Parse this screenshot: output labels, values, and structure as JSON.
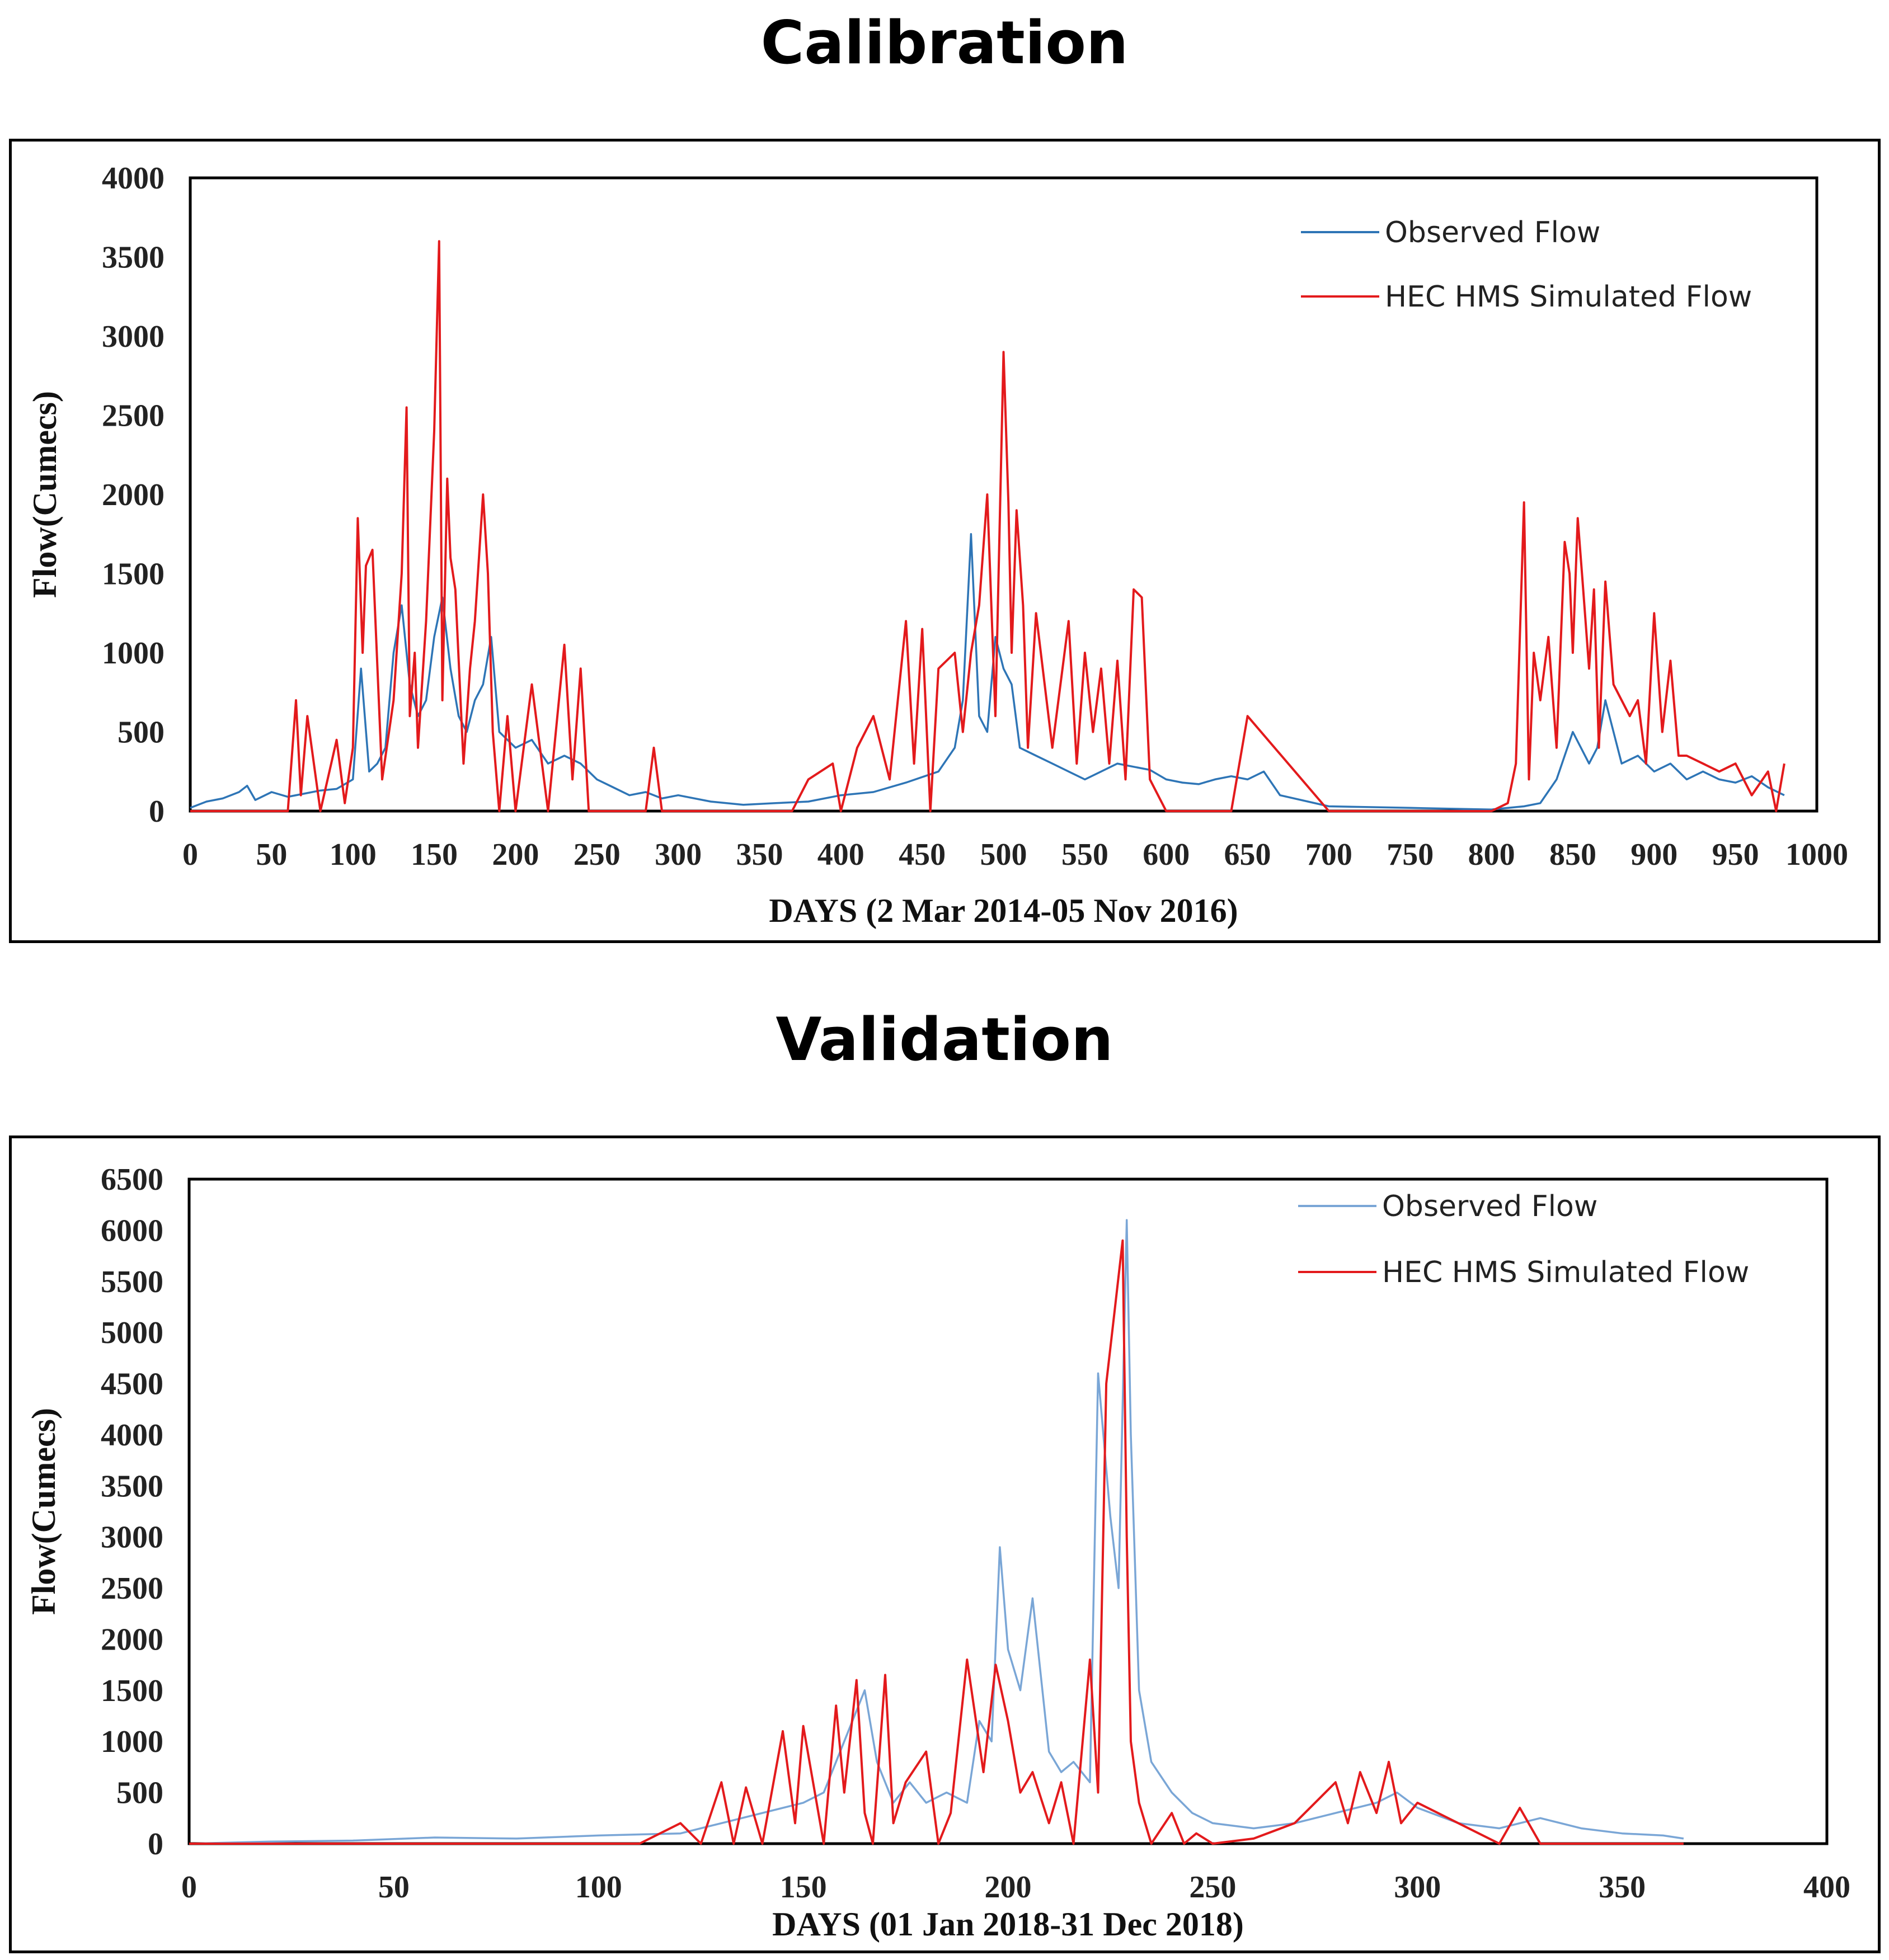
{
  "sections": {
    "calibration_title": "Calibration",
    "validation_title": "Validation"
  },
  "colors": {
    "observed_calibration": "#2e75b6",
    "observed_validation": "#7aa6d6",
    "simulated": "#e31a1c"
  },
  "chart_data": [
    {
      "type": "line",
      "title": "Calibration",
      "xlabel": "DAYS (2 Mar 2014-05 Nov 2016)",
      "ylabel": "Flow(Cumecs)",
      "xlim": [
        0,
        1000
      ],
      "ylim": [
        0,
        4000
      ],
      "xticks": [
        "0",
        "50",
        "100",
        "150",
        "200",
        "250",
        "300",
        "350",
        "400",
        "450",
        "500",
        "550",
        "600",
        "650",
        "700",
        "750",
        "800",
        "850",
        "900",
        "950",
        "1000"
      ],
      "yticks": [
        "0",
        "500",
        "1000",
        "1500",
        "2000",
        "2500",
        "3000",
        "3500",
        "4000"
      ],
      "legend_position": "top-right",
      "series": [
        {
          "name": "Observed Flow",
          "x": [
            0,
            10,
            20,
            30,
            35,
            40,
            50,
            60,
            70,
            80,
            90,
            100,
            105,
            110,
            115,
            120,
            125,
            130,
            135,
            140,
            145,
            150,
            155,
            160,
            165,
            170,
            175,
            180,
            185,
            190,
            200,
            210,
            220,
            230,
            240,
            250,
            260,
            270,
            280,
            290,
            300,
            320,
            340,
            360,
            380,
            400,
            420,
            440,
            460,
            470,
            475,
            480,
            485,
            490,
            495,
            500,
            505,
            510,
            520,
            530,
            540,
            550,
            560,
            570,
            580,
            590,
            600,
            610,
            620,
            630,
            640,
            650,
            660,
            670,
            700,
            750,
            800,
            820,
            830,
            840,
            850,
            860,
            865,
            870,
            880,
            890,
            900,
            910,
            920,
            930,
            940,
            950,
            960,
            970,
            980
          ],
          "y": [
            20,
            60,
            80,
            120,
            160,
            70,
            120,
            90,
            110,
            130,
            140,
            200,
            900,
            250,
            300,
            400,
            1000,
            1300,
            800,
            600,
            700,
            1100,
            1350,
            900,
            600,
            500,
            700,
            800,
            1100,
            500,
            400,
            450,
            300,
            350,
            300,
            200,
            150,
            100,
            120,
            80,
            100,
            60,
            40,
            50,
            60,
            100,
            120,
            180,
            250,
            400,
            700,
            1750,
            600,
            500,
            1100,
            900,
            800,
            400,
            350,
            300,
            250,
            200,
            250,
            300,
            280,
            260,
            200,
            180,
            170,
            200,
            220,
            200,
            250,
            100,
            30,
            20,
            10,
            30,
            50,
            200,
            500,
            300,
            400,
            700,
            300,
            350,
            250,
            300,
            200,
            250,
            200,
            180,
            220,
            150,
            100
          ]
        },
        {
          "name": "HEC HMS Simulated Flow",
          "x": [
            0,
            60,
            65,
            68,
            72,
            80,
            90,
            95,
            100,
            103,
            106,
            108,
            112,
            118,
            125,
            130,
            133,
            135,
            138,
            140,
            145,
            150,
            153,
            155,
            158,
            160,
            163,
            168,
            172,
            175,
            180,
            183,
            186,
            190,
            195,
            200,
            210,
            220,
            230,
            235,
            240,
            245,
            250,
            260,
            270,
            280,
            285,
            290,
            300,
            350,
            370,
            380,
            395,
            400,
            410,
            420,
            430,
            440,
            445,
            450,
            455,
            460,
            470,
            475,
            480,
            485,
            490,
            495,
            500,
            503,
            505,
            508,
            512,
            515,
            520,
            530,
            540,
            545,
            550,
            555,
            560,
            565,
            570,
            575,
            580,
            585,
            590,
            600,
            610,
            620,
            630,
            640,
            650,
            700,
            750,
            800,
            810,
            815,
            820,
            823,
            826,
            830,
            835,
            840,
            845,
            848,
            850,
            853,
            856,
            860,
            863,
            866,
            870,
            875,
            880,
            885,
            890,
            895,
            900,
            905,
            910,
            915,
            920,
            930,
            940,
            950,
            960,
            970,
            975,
            980
          ],
          "y": [
            0,
            0,
            700,
            100,
            600,
            0,
            450,
            50,
            400,
            1850,
            1000,
            1550,
            1650,
            200,
            700,
            1500,
            2550,
            600,
            1000,
            400,
            1200,
            2400,
            3600,
            700,
            2100,
            1600,
            1400,
            300,
            900,
            1200,
            2000,
            1500,
            500,
            0,
            600,
            0,
            800,
            0,
            1050,
            200,
            900,
            0,
            0,
            0,
            0,
            0,
            400,
            0,
            0,
            0,
            0,
            200,
            300,
            0,
            400,
            600,
            200,
            1200,
            300,
            1150,
            0,
            900,
            1000,
            500,
            1000,
            1300,
            2000,
            600,
            2900,
            1950,
            1000,
            1900,
            1300,
            400,
            1250,
            400,
            1200,
            300,
            1000,
            500,
            900,
            300,
            950,
            200,
            1400,
            1350,
            200,
            0,
            0,
            0,
            0,
            0,
            600,
            0,
            0,
            0,
            50,
            300,
            1950,
            200,
            1000,
            700,
            1100,
            400,
            1700,
            1500,
            1000,
            1850,
            1450,
            900,
            1400,
            400,
            1450,
            800,
            700,
            600,
            700,
            300,
            1250,
            500,
            950,
            350,
            350,
            300,
            250,
            300,
            100,
            250,
            0,
            300
          ]
        }
      ]
    },
    {
      "type": "line",
      "title": "Validation",
      "xlabel": "DAYS (01 Jan 2018-31 Dec 2018)",
      "ylabel": "Flow(Cumecs)",
      "xlim": [
        0,
        400
      ],
      "ylim": [
        0,
        6500
      ],
      "xticks": [
        "0",
        "50",
        "100",
        "150",
        "200",
        "250",
        "300",
        "350",
        "400"
      ],
      "yticks": [
        "0",
        "500",
        "1000",
        "1500",
        "2000",
        "2500",
        "3000",
        "3500",
        "4000",
        "4500",
        "5000",
        "5500",
        "6000",
        "6500"
      ],
      "legend_position": "top-right",
      "series": [
        {
          "name": "Observed Flow",
          "x": [
            0,
            20,
            40,
            60,
            80,
            100,
            120,
            130,
            140,
            150,
            155,
            160,
            165,
            168,
            172,
            176,
            180,
            185,
            190,
            193,
            196,
            198,
            200,
            203,
            206,
            210,
            213,
            216,
            220,
            222,
            225,
            227,
            229,
            230,
            232,
            235,
            240,
            245,
            250,
            260,
            270,
            280,
            290,
            295,
            300,
            310,
            320,
            330,
            340,
            350,
            360,
            365
          ],
          "y": [
            0,
            20,
            30,
            60,
            50,
            80,
            100,
            200,
            300,
            400,
            500,
            1000,
            1500,
            800,
            400,
            600,
            400,
            500,
            400,
            1200,
            1000,
            2900,
            1900,
            1500,
            2400,
            900,
            700,
            800,
            600,
            4600,
            3200,
            2500,
            6100,
            4000,
            1500,
            800,
            500,
            300,
            200,
            150,
            200,
            300,
            400,
            500,
            350,
            200,
            150,
            250,
            150,
            100,
            80,
            50
          ]
        },
        {
          "name": "HEC HMS Simulated Flow",
          "x": [
            0,
            110,
            120,
            125,
            130,
            133,
            136,
            140,
            145,
            148,
            150,
            155,
            158,
            160,
            163,
            165,
            167,
            170,
            172,
            175,
            180,
            183,
            186,
            190,
            194,
            197,
            200,
            203,
            206,
            210,
            213,
            216,
            220,
            222,
            224,
            226,
            228,
            229,
            230,
            232,
            235,
            240,
            243,
            246,
            250,
            260,
            270,
            275,
            280,
            283,
            286,
            290,
            293,
            296,
            300,
            320,
            325,
            330,
            360,
            365
          ],
          "y": [
            0,
            0,
            200,
            0,
            600,
            0,
            550,
            0,
            1100,
            200,
            1150,
            0,
            1350,
            500,
            1600,
            300,
            0,
            1650,
            200,
            600,
            900,
            0,
            300,
            1800,
            700,
            1750,
            1200,
            500,
            700,
            200,
            600,
            0,
            1800,
            500,
            4500,
            5200,
            5900,
            3000,
            1000,
            400,
            0,
            300,
            0,
            100,
            0,
            50,
            200,
            400,
            600,
            200,
            700,
            300,
            800,
            200,
            400,
            0,
            350,
            0,
            0,
            0
          ]
        }
      ]
    }
  ]
}
